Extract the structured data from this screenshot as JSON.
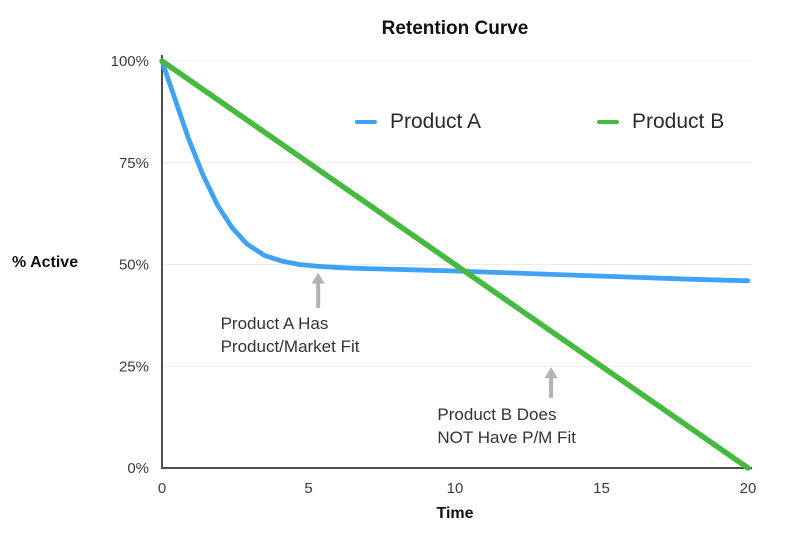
{
  "chart_data": {
    "type": "line",
    "title": "Retention Curve",
    "xlabel": "Time",
    "ylabel": "% Active",
    "xlim": [
      0,
      20
    ],
    "ylim": [
      0,
      100
    ],
    "grid": "horizontal-only",
    "legend_position": "top-center-inside",
    "x_ticks": [
      {
        "value": 0,
        "label": "0"
      },
      {
        "value": 5,
        "label": "5"
      },
      {
        "value": 10,
        "label": "10"
      },
      {
        "value": 15,
        "label": "15"
      },
      {
        "value": 20,
        "label": "20"
      }
    ],
    "y_ticks": [
      {
        "value": 0,
        "label": "0%"
      },
      {
        "value": 25,
        "label": "25%"
      },
      {
        "value": 50,
        "label": "50%"
      },
      {
        "value": 75,
        "label": "75%"
      },
      {
        "value": 100,
        "label": "100%"
      }
    ],
    "colors": {
      "axis": "#4d4d4d",
      "grid": "#ececec",
      "tick_text": "#3d3d3d",
      "annotation_text": "#333333",
      "annotation_arrow": "#b3b3b3"
    },
    "series": [
      {
        "name": "Product A",
        "color": "#3fa2f5",
        "x": [
          0,
          0.45,
          0.9,
          1.4,
          1.9,
          2.4,
          2.9,
          3.5,
          4.1,
          4.7,
          5.4,
          6.2,
          7,
          8,
          9,
          10,
          12,
          14,
          16,
          18,
          20
        ],
        "y": [
          100,
          90.5,
          81,
          72,
          64.5,
          59,
          55,
          52.2,
          50.8,
          50,
          49.5,
          49.2,
          49,
          48.8,
          48.6,
          48.4,
          47.9,
          47.4,
          46.9,
          46.4,
          46
        ]
      },
      {
        "name": "Product B",
        "color": "#45ba3f",
        "x": [
          0,
          20
        ],
        "y": [
          100,
          0
        ]
      }
    ],
    "annotations": [
      {
        "lines": [
          "Product A Has",
          "Product/Market Fit"
        ],
        "arrow_x": 5.33,
        "arrow_tail_y": 39.3,
        "arrow_tip_y": 48.0,
        "text_x": 2.0,
        "text_y": 38.3
      },
      {
        "lines": [
          "Product B Does",
          "NOT Have P/M Fit"
        ],
        "arrow_x": 13.28,
        "arrow_tail_y": 17.2,
        "arrow_tip_y": 24.8,
        "text_x": 9.4,
        "text_y": 16.0
      }
    ]
  }
}
